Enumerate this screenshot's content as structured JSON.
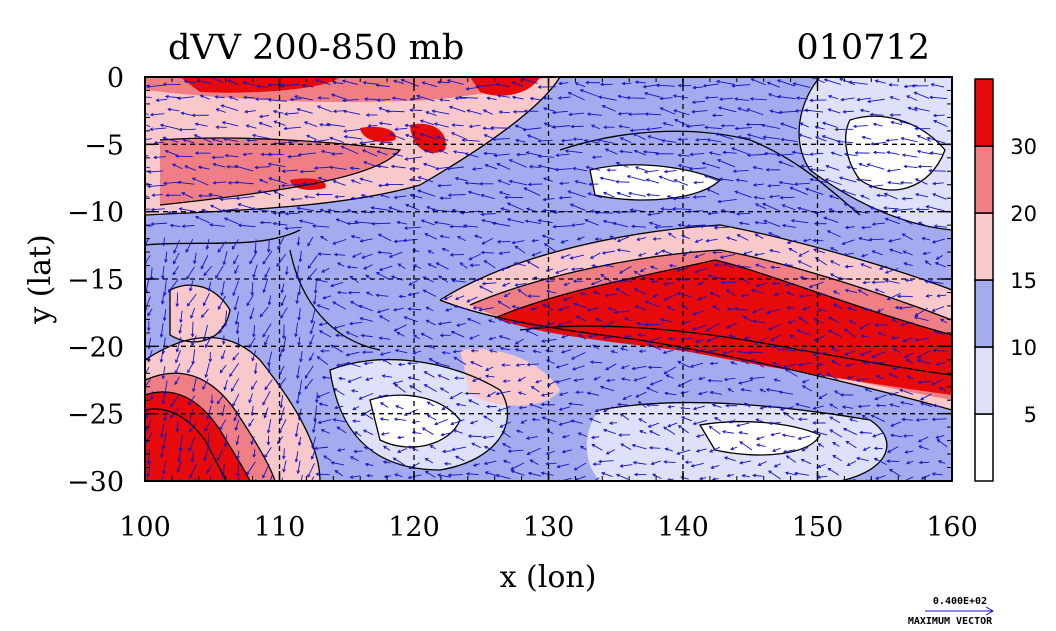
{
  "chart_data": {
    "type": "heatmap",
    "title": "dVV 200-850 mb",
    "date_label": "010712",
    "xlabel": "x (lon)",
    "ylabel": "y (lat)",
    "xlim": [
      100,
      160
    ],
    "ylim": [
      -30,
      0
    ],
    "x_ticks": [
      100,
      110,
      120,
      130,
      140,
      150,
      160
    ],
    "y_ticks": [
      0,
      -5,
      -10,
      -15,
      -20,
      -25,
      -30
    ],
    "grid": "dashed",
    "colorbar": {
      "levels": [
        0,
        5,
        10,
        15,
        20,
        30
      ],
      "labels": [
        "30",
        "20",
        "15",
        "10",
        "5"
      ],
      "colors": [
        "#ffffff",
        "#dfe1fb",
        "#a4abef",
        "#f9c8cb",
        "#ef7f85",
        "#e60a0a"
      ]
    },
    "vector_legend": {
      "value": "0.400E+02",
      "label": "MAXIMUM VECTOR",
      "color": "#1414c8"
    },
    "colors": {
      "vector": "#1414c8",
      "contour": "#000000"
    }
  }
}
